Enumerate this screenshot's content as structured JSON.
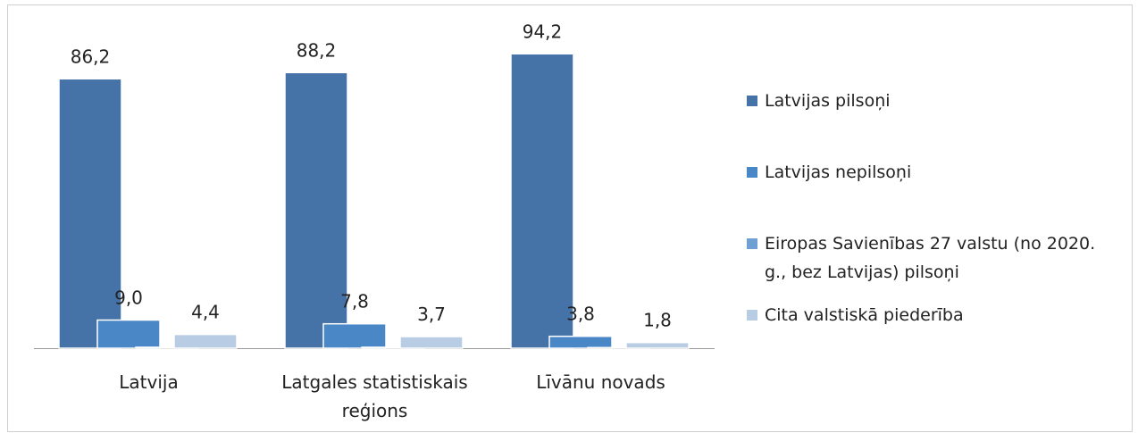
{
  "chart_data": {
    "type": "bar",
    "categories": [
      "Latvija",
      "Latgales statistiskais reģions",
      "Līvānu novads"
    ],
    "series": [
      {
        "name": "Latvijas pilsoņi",
        "color": "#4573a7",
        "values": [
          86.2,
          88.2,
          94.2
        ],
        "value_labels": [
          "86,2",
          "88,2",
          "94,2"
        ]
      },
      {
        "name": "Latvijas nepilsoņi",
        "color": "#4a87c6",
        "values": [
          9.0,
          7.8,
          3.8
        ],
        "value_labels": [
          "9,0",
          "7,8",
          "3,8"
        ]
      },
      {
        "name": "Eiropas Savienības 27 valstu (no 2020. g., bez Latvijas) pilsoņi",
        "color": "#6f9fd3",
        "values": [
          0.3,
          0.3,
          0.2
        ]
      },
      {
        "name": "Cita valstiskā piederība",
        "color": "#b8cce4",
        "values": [
          4.4,
          3.7,
          1.8
        ],
        "value_labels": [
          "4,4",
          "3,7",
          "1,8"
        ]
      }
    ],
    "legend": "right"
  }
}
